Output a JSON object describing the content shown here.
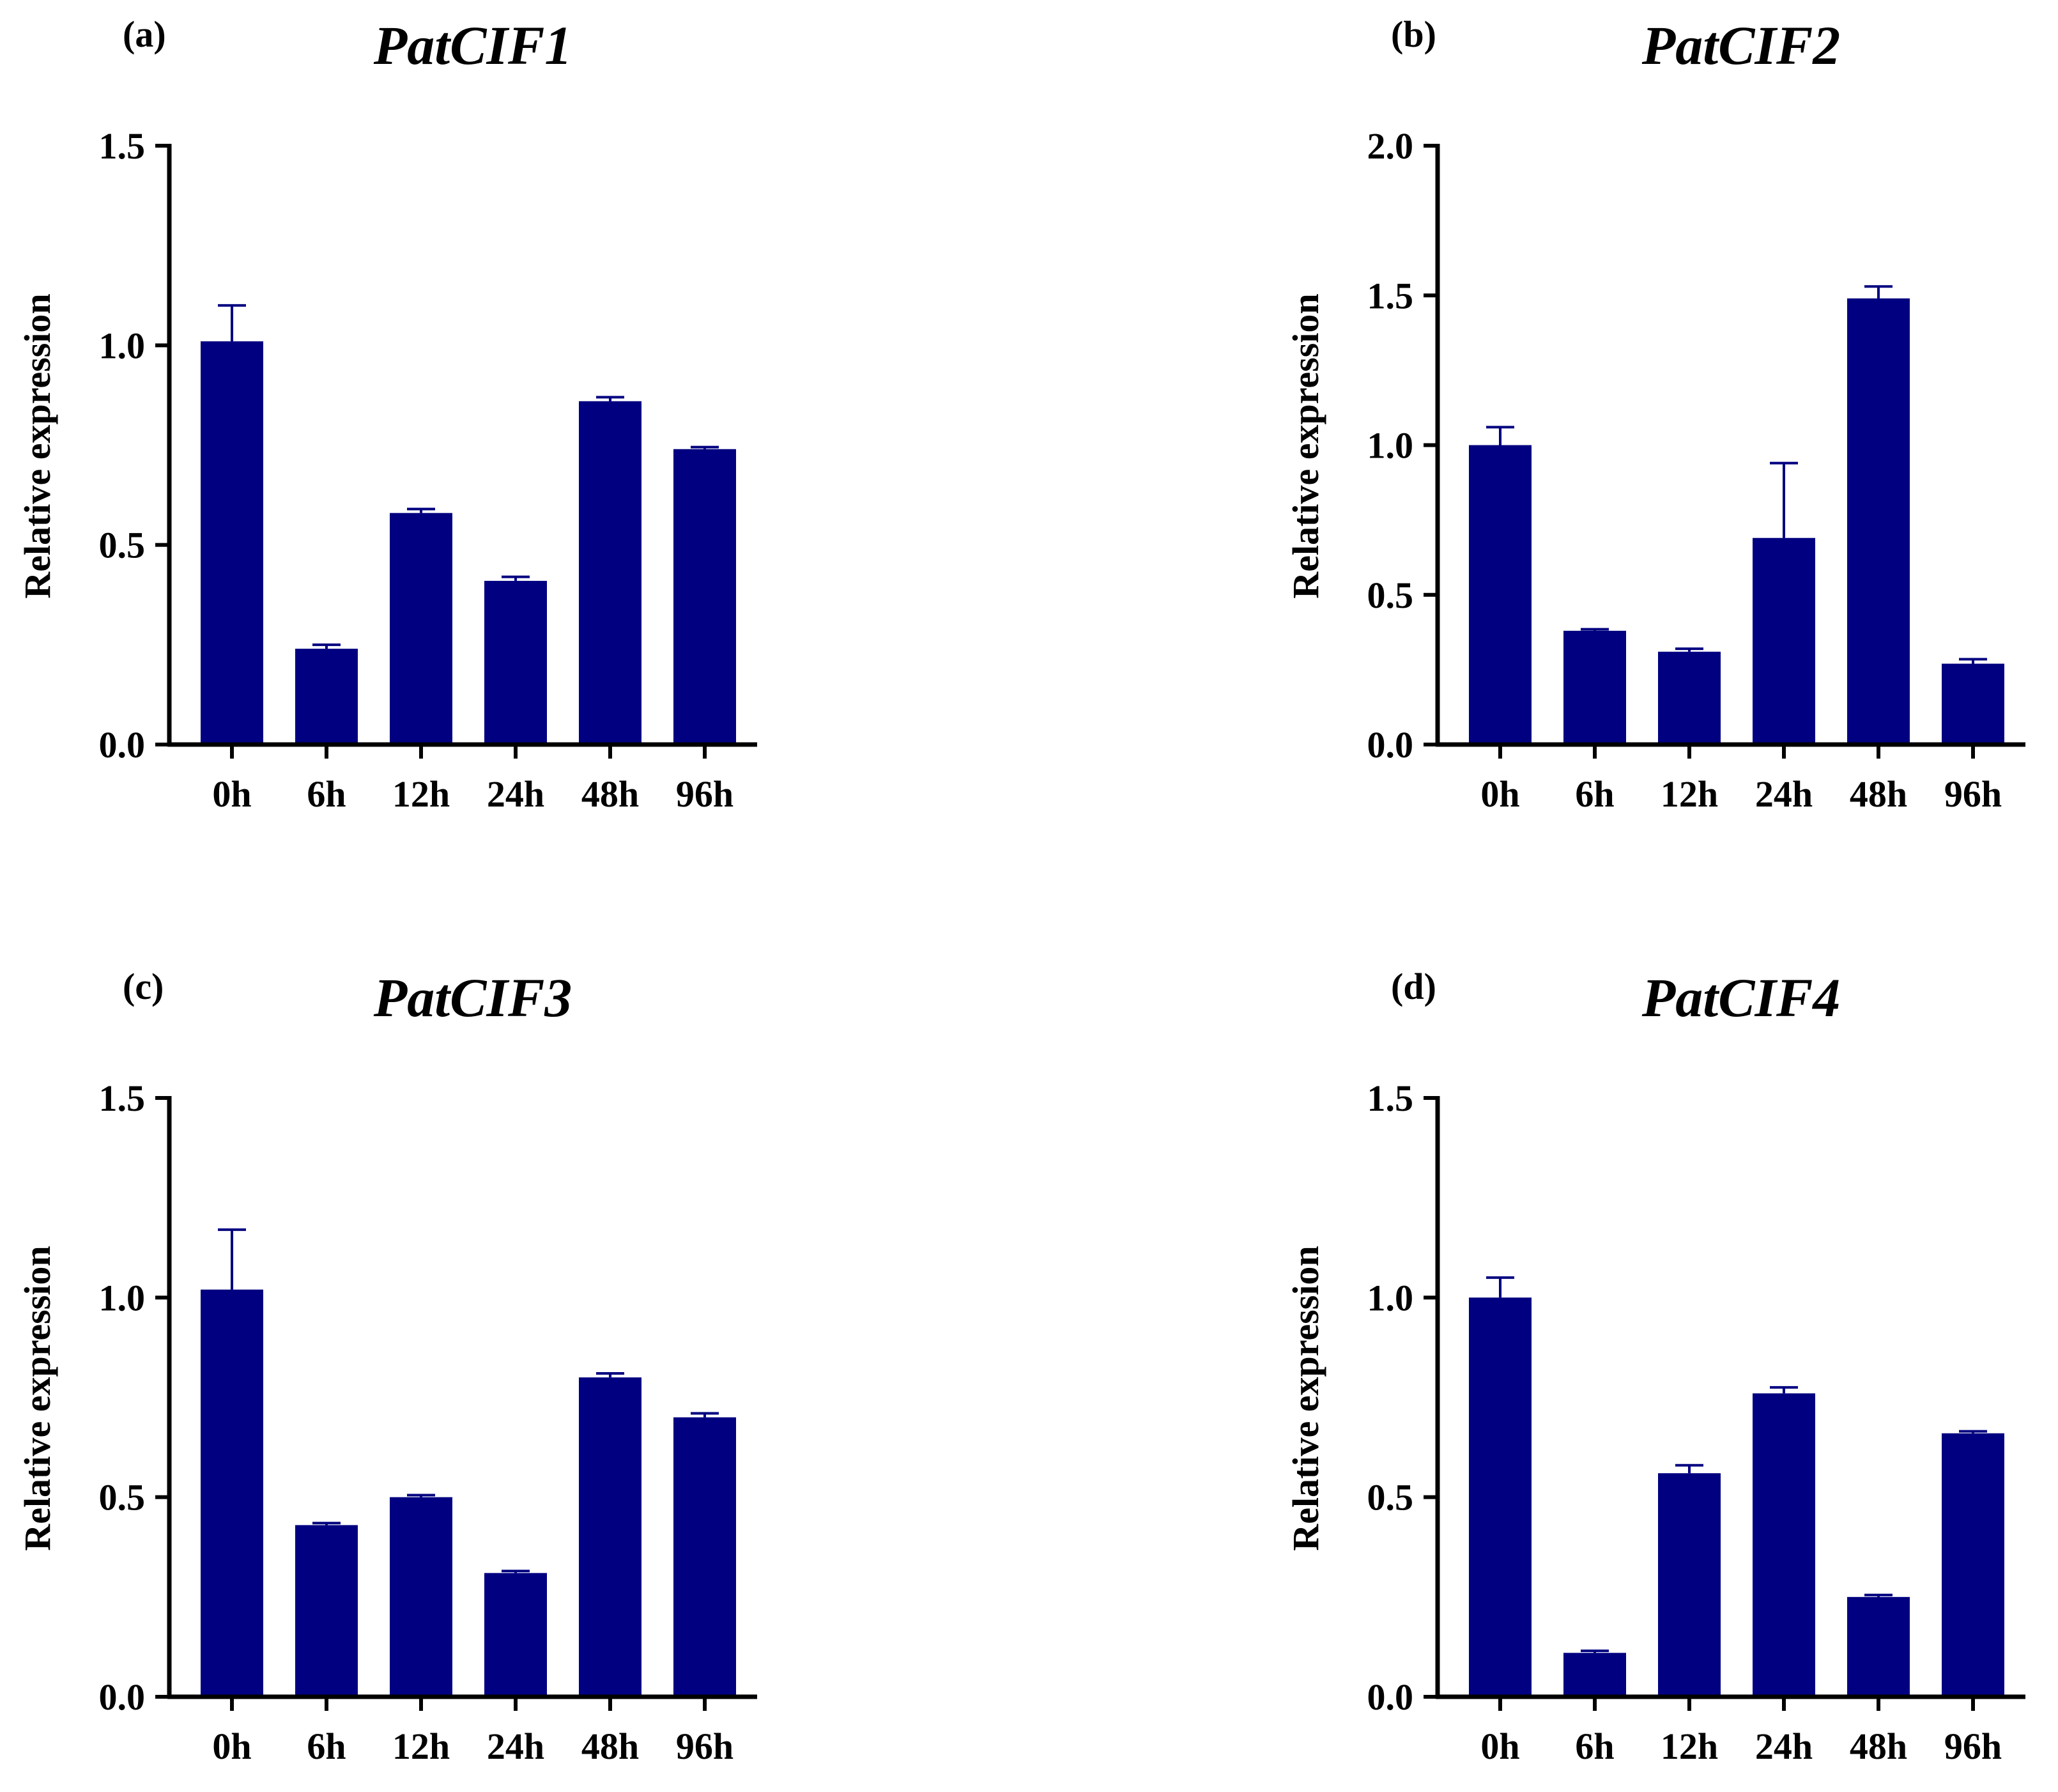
{
  "chart_data": [
    {
      "type": "bar",
      "panel_label": "(a)",
      "title": "PatCIF1",
      "xlabel": "",
      "ylabel": "Relative expression",
      "ylim": [
        0,
        1.5
      ],
      "yticks": [
        0.0,
        0.5,
        1.0,
        1.5
      ],
      "ytick_labels": [
        "0.0",
        "0.5",
        "1.0",
        "1.5"
      ],
      "categories": [
        "0h",
        "6h",
        "12h",
        "24h",
        "48h",
        "96h"
      ],
      "values": [
        1.01,
        0.24,
        0.58,
        0.41,
        0.86,
        0.74
      ],
      "errors": [
        0.09,
        0.01,
        0.01,
        0.01,
        0.01,
        0.005
      ],
      "color": "#000080"
    },
    {
      "type": "bar",
      "panel_label": "(b)",
      "title": "PatCIF2",
      "xlabel": "",
      "ylabel": "Relative expression",
      "ylim": [
        0,
        2.0
      ],
      "yticks": [
        0.0,
        0.5,
        1.0,
        1.5,
        2.0
      ],
      "ytick_labels": [
        "0.0",
        "0.5",
        "1.0",
        "1.5",
        "2.0"
      ],
      "categories": [
        "0h",
        "6h",
        "12h",
        "24h",
        "48h",
        "96h"
      ],
      "values": [
        1.0,
        0.38,
        0.31,
        0.69,
        1.49,
        0.27
      ],
      "errors": [
        0.06,
        0.005,
        0.01,
        0.25,
        0.04,
        0.015
      ],
      "color": "#000080"
    },
    {
      "type": "bar",
      "panel_label": "(c)",
      "title": "PatCIF3",
      "xlabel": "",
      "ylabel": "Relative expression",
      "ylim": [
        0,
        1.5
      ],
      "yticks": [
        0.0,
        0.5,
        1.0,
        1.5
      ],
      "ytick_labels": [
        "0.0",
        "0.5",
        "1.0",
        "1.5"
      ],
      "categories": [
        "0h",
        "6h",
        "12h",
        "24h",
        "48h",
        "96h"
      ],
      "values": [
        1.02,
        0.43,
        0.5,
        0.31,
        0.8,
        0.7
      ],
      "errors": [
        0.15,
        0.005,
        0.005,
        0.005,
        0.01,
        0.01
      ],
      "color": "#000080"
    },
    {
      "type": "bar",
      "panel_label": "(d)",
      "title": "PatCIF4",
      "xlabel": "",
      "ylabel": "Relative expression",
      "ylim": [
        0,
        1.5
      ],
      "yticks": [
        0.0,
        0.5,
        1.0,
        1.5
      ],
      "ytick_labels": [
        "0.0",
        "0.5",
        "1.0",
        "1.5"
      ],
      "categories": [
        "0h",
        "6h",
        "12h",
        "24h",
        "48h",
        "96h"
      ],
      "values": [
        1.0,
        0.11,
        0.56,
        0.76,
        0.25,
        0.66
      ],
      "errors": [
        0.05,
        0.005,
        0.02,
        0.015,
        0.005,
        0.005
      ],
      "color": "#000080"
    }
  ]
}
